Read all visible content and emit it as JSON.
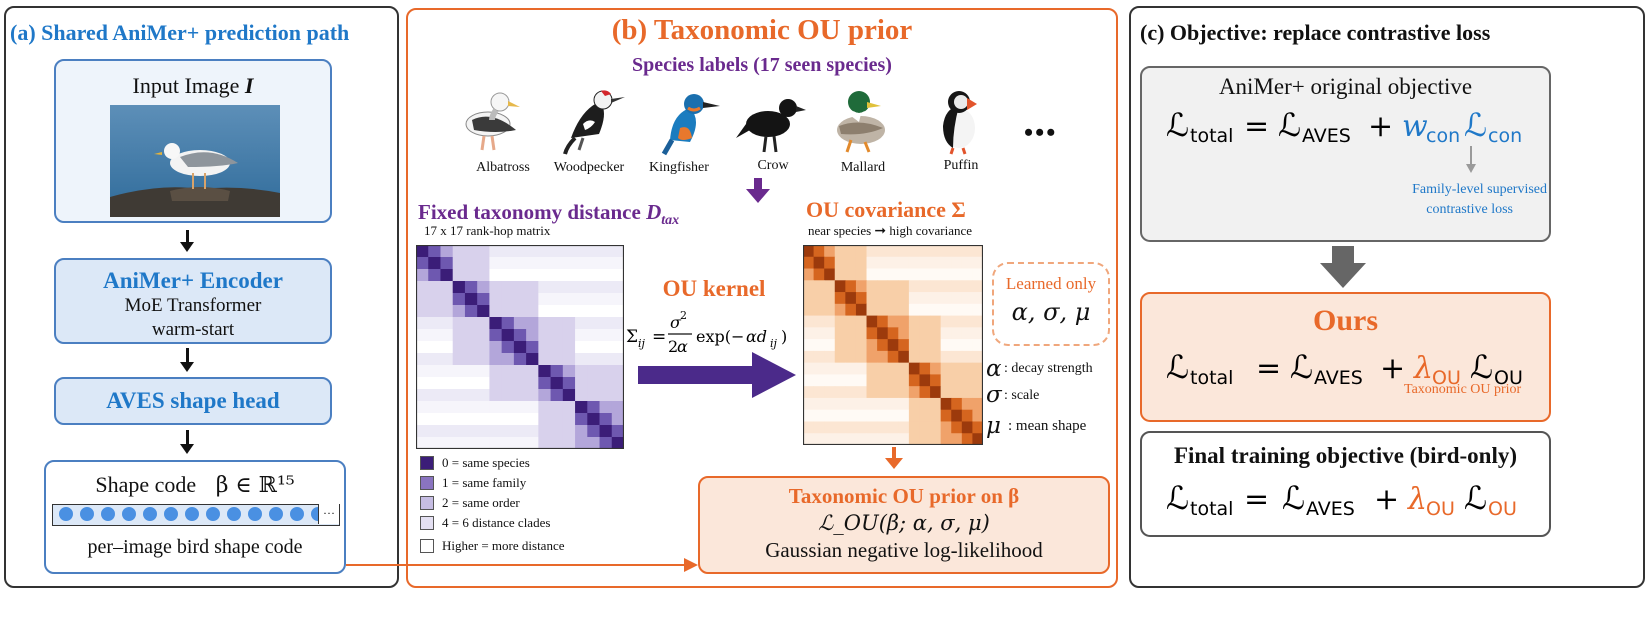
{
  "panel_a": {
    "title": "(a) Shared AniMer+ prediction path",
    "input_label": "Input Image ",
    "input_var": "I",
    "encoder_title": "AniMer+  Encoder",
    "encoder_sub1": "MoE Transformer",
    "encoder_sub2": "warm-start",
    "head_title": "AVES shape head",
    "shape_code_label": "Shape code",
    "shape_code_math": "β ∈ ℝ¹⁵",
    "ellipsis": "···",
    "shape_code_caption": "per–image bird shape code"
  },
  "panel_b": {
    "title": "(b) Taxonomic OU prior",
    "species_title": "Species labels (17 seen species)",
    "birds": [
      "Albatross",
      "Woodpecker",
      "Kingfisher",
      "Crow",
      "Mallard",
      "Puffin"
    ],
    "more": "•••",
    "dist_title": "Fixed taxonomy distance ",
    "dist_var": "D",
    "dist_sub": "tax",
    "dist_subtitle": "17 x 17 rank-hop matrix",
    "cov_title": "OU covariance Σ",
    "cov_subtitle_left": "near species",
    "cov_subtitle_right": "high covariance",
    "kernel_title": "OU kernel",
    "learned_title": "Learned only",
    "learned_params": "α, σ, μ",
    "param_alpha": "α",
    "param_alpha_desc": ": decay strength",
    "param_sigma": "σ",
    "param_sigma_desc": ": scale",
    "param_mu": "μ",
    "param_mu_desc": ": mean shape",
    "legend": [
      {
        "label": "0 = same species",
        "color": "#3b1d78"
      },
      {
        "label": "1 = same family",
        "color": "#8a74c0"
      },
      {
        "label": "2 = same order",
        "color": "#c6bde3"
      },
      {
        "label": "4 = 6 distance clades",
        "color": "#e4e0f2"
      },
      {
        "label": "Higher = more distance",
        "color": "#ffffff"
      }
    ],
    "prior_title": "Taxonomic OU prior on β",
    "prior_formula": "ℒ_OU(β; α, σ, μ)",
    "prior_desc": "Gaussian negative log-likelihood"
  },
  "panel_c": {
    "title": "(c) Objective: replace contrastive loss",
    "orig_title": "AniMer+ original objective",
    "orig_note_line1": "Family-level supervised",
    "orig_note_line2": "contrastive loss",
    "ours_title": "Ours",
    "ours_note": "Taxonomic OU prior",
    "final_title": "Final training objective (bird-only)"
  },
  "colors": {
    "blue": "#1f78c8",
    "orange": "#e8692a",
    "purple": "#6a2a8e",
    "light_blue_fill": "#dce8f7",
    "light_orange_fill": "#fbe7da",
    "gray_fill": "#f1f1f1"
  },
  "icons": [
    "seagull-photo",
    "albatross-icon",
    "woodpecker-icon",
    "kingfisher-icon",
    "crow-icon",
    "mallard-icon",
    "puffin-icon"
  ]
}
